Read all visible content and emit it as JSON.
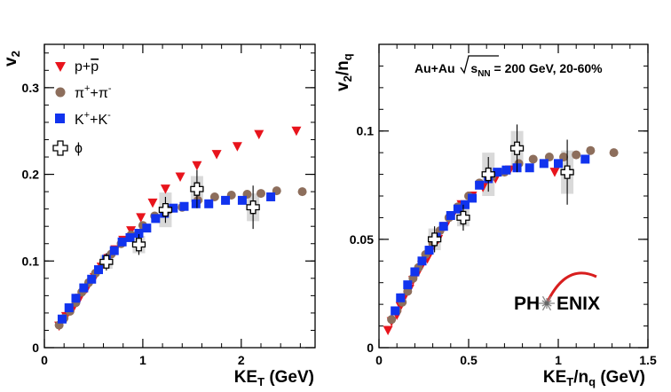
{
  "colors": {
    "proton": "#e8141c",
    "pion": "#8d6e5c",
    "kaon": "#1133ee",
    "phi": "#ffffff",
    "band": "#cccccc",
    "logo_arc": "#d81e1e"
  },
  "chart_data": [
    {
      "type": "scatter",
      "panel": "left",
      "xlabel": "KE_T (GeV)",
      "ylabel": "v_2",
      "xlim": [
        0,
        2.75
      ],
      "ylim": [
        0,
        0.35
      ],
      "xticks": [
        {
          "v": 0,
          "label": "0"
        },
        {
          "v": 1,
          "label": "1"
        },
        {
          "v": 2,
          "label": "2"
        }
      ],
      "yticks": [
        {
          "v": 0,
          "label": "0"
        },
        {
          "v": 0.1,
          "label": "0.1"
        },
        {
          "v": 0.2,
          "label": "0.2"
        },
        {
          "v": 0.3,
          "label": "0.3"
        }
      ],
      "legend_position": "top-left",
      "series": [
        {
          "key": "proton",
          "name": "p+p̄",
          "marker": "triangle-down",
          "x": [
            0.15,
            0.22,
            0.29,
            0.36,
            0.43,
            0.51,
            0.58,
            0.65,
            0.72,
            0.8,
            0.88,
            0.98,
            1.1,
            1.23,
            1.38,
            1.55,
            1.75,
            1.96,
            2.18,
            2.56
          ],
          "y": [
            0.025,
            0.036,
            0.045,
            0.057,
            0.068,
            0.081,
            0.093,
            0.103,
            0.113,
            0.124,
            0.135,
            0.15,
            0.167,
            0.183,
            0.197,
            0.21,
            0.223,
            0.232,
            0.246,
            0.25
          ]
        },
        {
          "key": "pion",
          "name": "π⁺+π⁻",
          "marker": "circle",
          "x": [
            0.15,
            0.2,
            0.26,
            0.32,
            0.38,
            0.45,
            0.52,
            0.6,
            0.68,
            0.78,
            0.88,
            1.0,
            1.12,
            1.26,
            1.4,
            1.56,
            1.73,
            1.9,
            2.06,
            2.2,
            2.36,
            2.62
          ],
          "y": [
            0.026,
            0.034,
            0.042,
            0.052,
            0.064,
            0.075,
            0.086,
            0.097,
            0.108,
            0.12,
            0.13,
            0.141,
            0.152,
            0.159,
            0.162,
            0.17,
            0.174,
            0.176,
            0.177,
            0.178,
            0.181,
            0.18
          ]
        },
        {
          "key": "kaon",
          "name": "K⁺+K⁻",
          "marker": "square",
          "x": [
            0.18,
            0.25,
            0.32,
            0.4,
            0.48,
            0.55,
            0.63,
            0.71,
            0.79,
            0.87,
            0.96,
            1.04,
            1.13,
            1.22,
            1.31,
            1.42,
            1.54,
            1.67,
            1.84,
            2.01,
            2.3
          ],
          "y": [
            0.033,
            0.046,
            0.057,
            0.069,
            0.079,
            0.09,
            0.102,
            0.112,
            0.122,
            0.127,
            0.132,
            0.138,
            0.149,
            0.155,
            0.161,
            0.163,
            0.166,
            0.166,
            0.17,
            0.17,
            0.174
          ]
        },
        {
          "key": "phi",
          "name": "ϕ",
          "marker": "open-cross",
          "x": [
            0.63,
            0.96,
            1.23,
            1.55,
            2.12
          ],
          "y": [
            0.099,
            0.119,
            0.159,
            0.183,
            0.162
          ],
          "yerr": [
            0.01,
            0.012,
            0.015,
            0.022,
            0.025
          ],
          "band": [
            0.008,
            0.01,
            0.02,
            0.015,
            0.016
          ]
        }
      ]
    },
    {
      "type": "scatter",
      "panel": "right",
      "xlabel": "KE_T/n_q (GeV)",
      "ylabel": "v_2/n_q",
      "xlim": [
        0,
        1.5
      ],
      "ylim": [
        0,
        0.14
      ],
      "xticks": [
        {
          "v": 0,
          "label": "0"
        },
        {
          "v": 0.5,
          "label": "0.5"
        },
        {
          "v": 1,
          "label": "1"
        },
        {
          "v": 1.5,
          "label": "1.5"
        }
      ],
      "yticks": [
        {
          "v": 0,
          "label": "0"
        },
        {
          "v": 0.05,
          "label": "0.05"
        },
        {
          "v": 0.1,
          "label": "0.1"
        }
      ],
      "annotation": "Au+Au √s_NN = 200 GeV, 20-60%",
      "logo": "PHENIX",
      "series": [
        {
          "key": "proton",
          "marker": "triangle-down",
          "x": [
            0.05,
            0.07,
            0.1,
            0.12,
            0.14,
            0.17,
            0.19,
            0.22,
            0.24,
            0.27,
            0.29,
            0.33,
            0.37,
            0.41,
            0.46,
            0.52,
            0.58,
            0.65,
            0.73,
            0.98
          ],
          "y": [
            0.008,
            0.012,
            0.015,
            0.019,
            0.023,
            0.027,
            0.031,
            0.035,
            0.038,
            0.041,
            0.045,
            0.05,
            0.056,
            0.061,
            0.066,
            0.07,
            0.074,
            0.078,
            0.082,
            0.081
          ]
        },
        {
          "key": "pion",
          "marker": "circle",
          "x": [
            0.07,
            0.1,
            0.13,
            0.16,
            0.19,
            0.22,
            0.26,
            0.3,
            0.34,
            0.39,
            0.44,
            0.5,
            0.56,
            0.63,
            0.7,
            0.78,
            0.86,
            0.95,
            1.03,
            1.1,
            1.18,
            1.31
          ],
          "y": [
            0.013,
            0.017,
            0.021,
            0.026,
            0.032,
            0.037,
            0.043,
            0.048,
            0.054,
            0.06,
            0.065,
            0.07,
            0.076,
            0.079,
            0.081,
            0.085,
            0.087,
            0.088,
            0.088,
            0.089,
            0.091,
            0.09
          ]
        },
        {
          "key": "kaon",
          "marker": "square",
          "x": [
            0.09,
            0.12,
            0.16,
            0.2,
            0.24,
            0.28,
            0.32,
            0.36,
            0.4,
            0.44,
            0.48,
            0.52,
            0.56,
            0.61,
            0.66,
            0.71,
            0.77,
            0.84,
            0.92,
            1.0,
            1.15
          ],
          "y": [
            0.017,
            0.023,
            0.029,
            0.035,
            0.04,
            0.045,
            0.051,
            0.056,
            0.061,
            0.064,
            0.066,
            0.069,
            0.075,
            0.078,
            0.081,
            0.082,
            0.083,
            0.083,
            0.085,
            0.085,
            0.087
          ]
        },
        {
          "key": "phi",
          "marker": "open-cross",
          "x": [
            0.31,
            0.47,
            0.61,
            0.77,
            1.05
          ],
          "y": [
            0.05,
            0.06,
            0.08,
            0.092,
            0.081
          ],
          "yerr": [
            0.006,
            0.006,
            0.008,
            0.011,
            0.015
          ],
          "band": [
            0.005,
            0.004,
            0.01,
            0.008,
            0.01
          ]
        }
      ]
    }
  ]
}
